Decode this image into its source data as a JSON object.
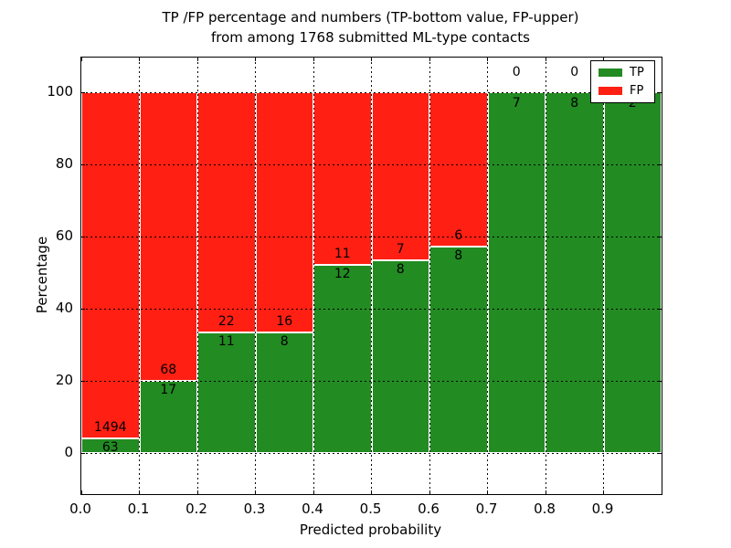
{
  "chart_data": {
    "type": "bar",
    "stacked": true,
    "normalized": "each bar totals 100%",
    "title_line1": "TP /FP percentage and numbers (TP-bottom value, FP-upper)",
    "title_line2": "from among 1768 submitted ML-type contacts",
    "xlabel": "Predicted probability",
    "ylabel": "Percentage",
    "x_tick_labels": [
      "0.0",
      "0.1",
      "0.2",
      "0.3",
      "0.4",
      "0.5",
      "0.6",
      "0.7",
      "0.8",
      "0.9"
    ],
    "y_tick_values": [
      0,
      20,
      40,
      60,
      80,
      100
    ],
    "xlim": [
      0.0,
      1.0
    ],
    "ylim": [
      -11,
      110
    ],
    "bin_width": 0.1,
    "categories": [
      "0.0-0.1",
      "0.1-0.2",
      "0.2-0.3",
      "0.3-0.4",
      "0.4-0.5",
      "0.5-0.6",
      "0.6-0.7",
      "0.7-0.8",
      "0.8-0.9",
      "0.9-1.0"
    ],
    "series": [
      {
        "name": "TP",
        "color": "#228b22",
        "counts": [
          63,
          17,
          11,
          8,
          12,
          8,
          8,
          7,
          8,
          2
        ]
      },
      {
        "name": "FP",
        "color": "#ff1f13",
        "counts": [
          1494,
          68,
          22,
          16,
          11,
          7,
          6,
          0,
          0,
          0
        ]
      }
    ],
    "tp_percent_of_bar": [
      4.0,
      20.0,
      33.3,
      33.3,
      52.2,
      53.3,
      57.1,
      100.0,
      100.0,
      100.0
    ],
    "total_contacts": 1768,
    "grid": "dotted black, horizontal and vertical, drawn over bars",
    "legend": {
      "position": "upper right",
      "entries": [
        {
          "label": "TP",
          "color": "#228b22"
        },
        {
          "label": "FP",
          "color": "#ff1f13"
        }
      ]
    }
  }
}
